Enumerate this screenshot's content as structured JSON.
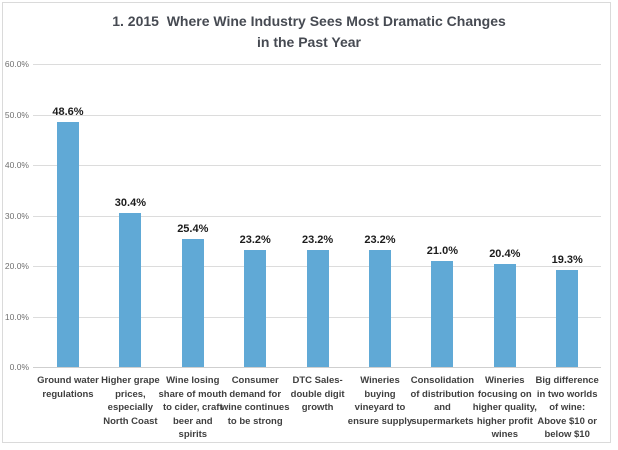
{
  "title": {
    "line1": "1. 2015  Where Wine Industry Sees Most Dramatic Changes",
    "line2": "in the Past Year"
  },
  "chart_data": {
    "type": "bar",
    "title": "1. 2015 Where Wine Industry Sees Most Dramatic Changes in the Past Year",
    "categories": [
      "Ground water regulations",
      "Higher grape prices, especially North Coast",
      "Wine losing share of mouth to cider, craft beer and spirits",
      "Consumer demand for wine continues to be strong",
      "DTC Sales- double digit growth",
      "Wineries buying vineyard to ensure supply",
      "Consolidation of distribution and supermarkets",
      "Wineries focusing on higher quality, higher profit wines",
      "Big difference in two worlds of wine: Above $10 or below $10"
    ],
    "category_display": [
      "Ground water\nregulations",
      "Higher grape\nprices,\nespecially\nNorth Coast",
      "Wine losing\nshare of mouth\nto cider, craft\nbeer and\nspirits",
      "Consumer\ndemand for\nwine continues\nto be strong",
      "DTC Sales-\ndouble digit\ngrowth",
      "Wineries\nbuying\nvineyard to\nensure supply",
      "Consolidation\nof distribution\nand\nsupermarkets",
      "Wineries\nfocusing on\nhigher quality,\nhigher profit\nwines",
      "Big difference\nin two worlds\nof wine:\nAbove $10 or\nbelow $10"
    ],
    "values": [
      48.6,
      30.4,
      25.4,
      23.2,
      23.2,
      23.2,
      21.0,
      20.4,
      19.3
    ],
    "value_labels": [
      "48.6%",
      "30.4%",
      "25.4%",
      "23.2%",
      "23.2%",
      "23.2%",
      "21.0%",
      "20.4%",
      "19.3%"
    ],
    "xlabel": "",
    "ylabel": "",
    "ylim": [
      0,
      60
    ],
    "yticks": [
      {
        "value": 0,
        "label": "0.0%"
      },
      {
        "value": 10,
        "label": "10.0%"
      },
      {
        "value": 20,
        "label": "20.0%"
      },
      {
        "value": 30,
        "label": "30.0%"
      },
      {
        "value": 40,
        "label": "40.0%"
      },
      {
        "value": 50,
        "label": "50.0%"
      },
      {
        "value": 60,
        "label": "60.0%"
      }
    ],
    "grid": true,
    "legend": false,
    "bar_color": "#60A9D6"
  },
  "colors": {
    "bar": "#60A9D6",
    "title_text": "#464A52",
    "value_label": "#1C1C1C",
    "category_label": "#3F3F3F",
    "ytick_label": "#707070",
    "gridline": "#DCDCDC",
    "axis_line": "#CFCFCF",
    "frame_border": "#DADADA",
    "background": "#FFFFFF"
  }
}
